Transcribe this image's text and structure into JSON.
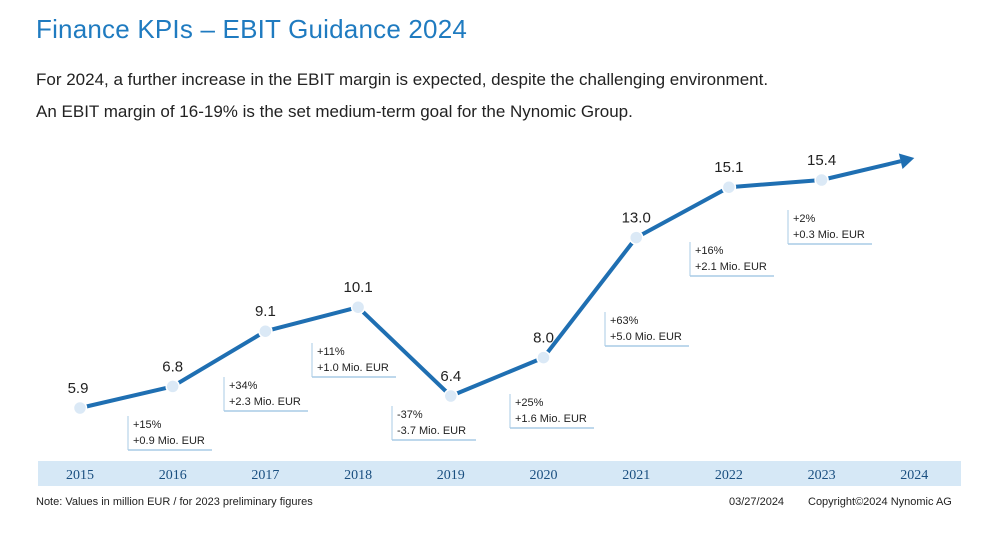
{
  "slide": {
    "title": "Finance KPIs – EBIT Guidance 2024",
    "subtitle_line1": "For 2024, a further increase in the EBIT margin is expected, despite the challenging environment.",
    "subtitle_line2": "An EBIT margin of 16-19% is the set medium-term goal for the Nynomic Group."
  },
  "footer": {
    "note": "Note: Values in million EUR / for 2023 preliminary figures",
    "date": "03/27/2024",
    "copyright": "Copyright©2024 Nynomic AG"
  },
  "colors": {
    "title": "#1f7bc0",
    "line": "#1f6fb2",
    "point": "#dbe9f6",
    "axis_band": "#d6e8f6",
    "axis_text": "#1a4f80",
    "annotation_border": "#a9cbe6"
  },
  "chart_data": {
    "type": "line",
    "title": "EBIT",
    "xlabel": "",
    "ylabel": "",
    "unit": "million EUR",
    "categories": [
      "2015",
      "2016",
      "2017",
      "2018",
      "2019",
      "2020",
      "2021",
      "2022",
      "2023",
      "2024"
    ],
    "values": [
      5.9,
      6.8,
      9.1,
      10.1,
      6.4,
      8.0,
      13.0,
      15.1,
      15.4,
      null
    ],
    "value_labels": [
      "5.9",
      "6.8",
      "9.1",
      "10.1",
      "6.4",
      "8.0",
      "13.0",
      "15.1",
      "15.4",
      ""
    ],
    "ylim": [
      0,
      18
    ],
    "forecast_2024": "arrow indicating further increase",
    "annotations": [
      {
        "year": "2016",
        "pct": "+15%",
        "abs": "+0.9 Mio. EUR"
      },
      {
        "year": "2017",
        "pct": "+34%",
        "abs": "+2.3 Mio. EUR"
      },
      {
        "year": "2018",
        "pct": "+11%",
        "abs": "+1.0 Mio. EUR"
      },
      {
        "year": "2019",
        "pct": "-37%",
        "abs": "-3.7 Mio. EUR"
      },
      {
        "year": "2020",
        "pct": "+25%",
        "abs": "+1.6 Mio. EUR"
      },
      {
        "year": "2021",
        "pct": "+63%",
        "abs": "+5.0 Mio. EUR"
      },
      {
        "year": "2022",
        "pct": "+16%",
        "abs": "+2.1 Mio. EUR"
      },
      {
        "year": "2023",
        "pct": "+2%",
        "abs": "+0.3 Mio. EUR"
      }
    ]
  }
}
